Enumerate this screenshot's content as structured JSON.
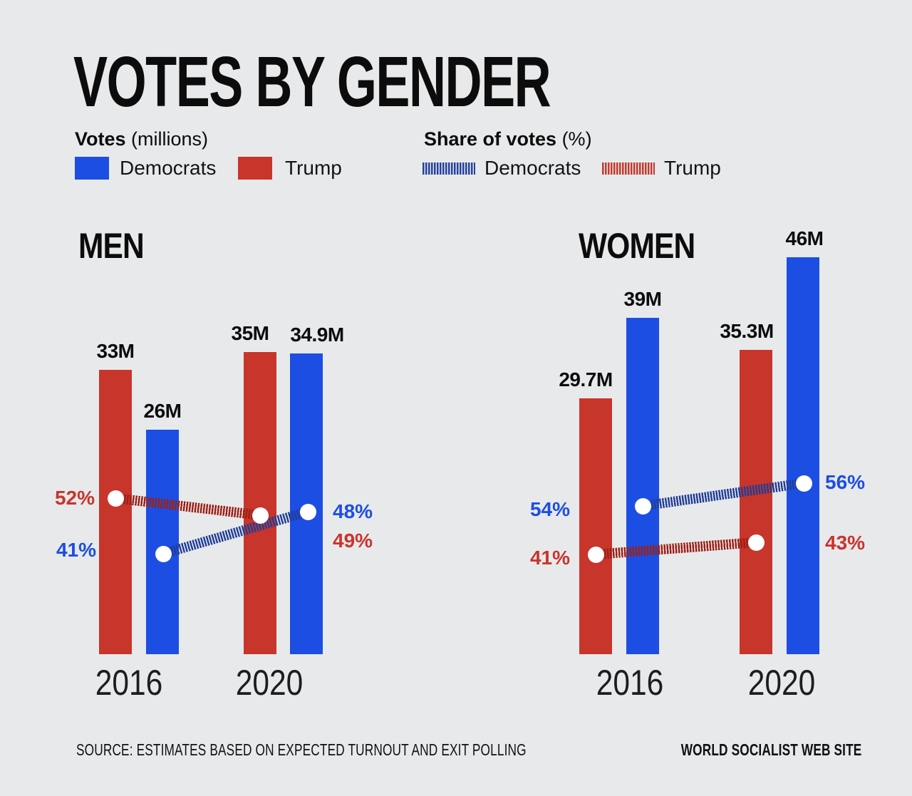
{
  "title": "VOTES BY GENDER",
  "colors": {
    "background": "#e8e9eb",
    "text": "#0c0c0c",
    "dem_bar": "#1c4ee3",
    "rep_bar": "#c8352b",
    "dem_line": "#203e96",
    "rep_line": "#9c2016",
    "dot": "#ffffff"
  },
  "legend": {
    "votes": {
      "heading": "Votes",
      "heading_suffix": " (millions)",
      "items": [
        {
          "label": "Democrats",
          "color": "#1c4ee3"
        },
        {
          "label": "Trump",
          "color": "#c8352b"
        }
      ]
    },
    "share": {
      "heading": "Share of votes",
      "heading_suffix": " (%)",
      "items": [
        {
          "label": "Democrats",
          "color": "#26429b"
        },
        {
          "label": "Trump",
          "color": "#c23a2e"
        }
      ]
    }
  },
  "chart_data": [
    {
      "type": "bar",
      "panel": "MEN",
      "unit": "millions of votes",
      "categories": [
        "2016",
        "2020"
      ],
      "bars": [
        {
          "year": "2016",
          "party": "Trump",
          "value": 33,
          "label": "33M"
        },
        {
          "year": "2016",
          "party": "Democrats",
          "value": 26,
          "label": "26M"
        },
        {
          "year": "2020",
          "party": "Trump",
          "value": 35,
          "label": "35M"
        },
        {
          "year": "2020",
          "party": "Democrats",
          "value": 34.9,
          "label": "34.9M"
        }
      ],
      "share_lines": [
        {
          "party": "Democrats",
          "points": [
            {
              "year": "2016",
              "pct": 41,
              "label": "41%"
            },
            {
              "year": "2020",
              "pct": 48,
              "label": "48%"
            }
          ]
        },
        {
          "party": "Trump",
          "points": [
            {
              "year": "2016",
              "pct": 52,
              "label": "52%"
            },
            {
              "year": "2020",
              "pct": 49,
              "label": "49%"
            }
          ]
        }
      ]
    },
    {
      "type": "bar",
      "panel": "WOMEN",
      "unit": "millions of votes",
      "categories": [
        "2016",
        "2020"
      ],
      "bars": [
        {
          "year": "2016",
          "party": "Trump",
          "value": 29.7,
          "label": "29.7M"
        },
        {
          "year": "2016",
          "party": "Democrats",
          "value": 39,
          "label": "39M"
        },
        {
          "year": "2020",
          "party": "Trump",
          "value": 35.3,
          "label": "35.3M"
        },
        {
          "year": "2020",
          "party": "Democrats",
          "value": 46,
          "label": "46M"
        }
      ],
      "share_lines": [
        {
          "party": "Democrats",
          "points": [
            {
              "year": "2016",
              "pct": 54,
              "label": "54%"
            },
            {
              "year": "2020",
              "pct": 56,
              "label": "56%"
            }
          ]
        },
        {
          "party": "Trump",
          "points": [
            {
              "year": "2016",
              "pct": 41,
              "label": "41%"
            },
            {
              "year": "2020",
              "pct": 43,
              "label": "43%"
            }
          ]
        }
      ]
    }
  ],
  "footer": {
    "source": "SOURCE: ESTIMATES BASED ON EXPECTED TURNOUT AND EXIT POLLING",
    "credit": "WORLD SOCIALIST WEB SITE"
  }
}
